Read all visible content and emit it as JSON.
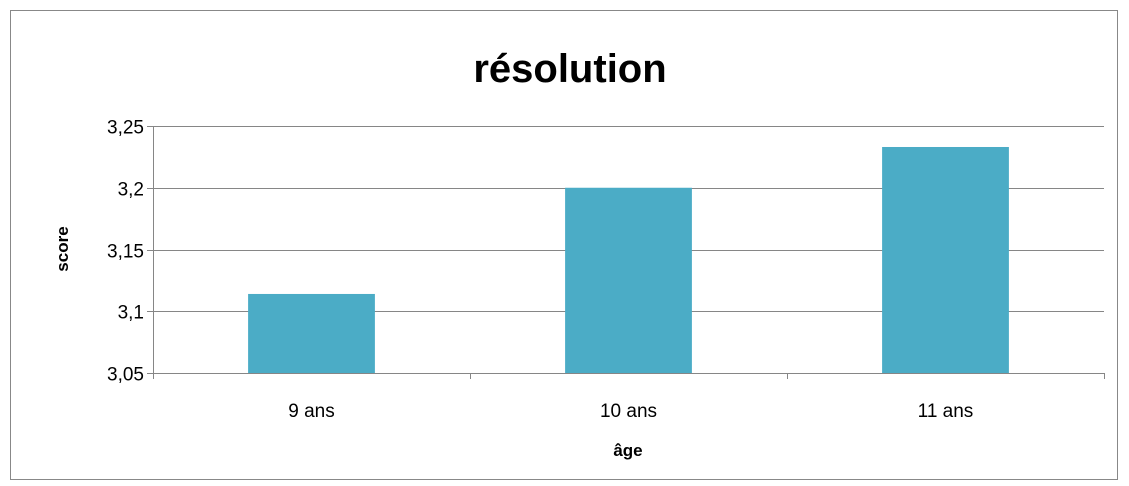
{
  "chart_data": {
    "type": "bar",
    "title": "résolution",
    "xlabel": "âge",
    "ylabel": "score",
    "categories": [
      "9 ans",
      "10 ans",
      "11 ans"
    ],
    "values": [
      3.114,
      3.2,
      3.233
    ],
    "ylim": [
      3.05,
      3.25
    ],
    "yticks": [
      3.05,
      3.1,
      3.15,
      3.2,
      3.25
    ],
    "ytick_labels": [
      "3,05",
      "3,1",
      "3,15",
      "3,2",
      "3,25"
    ],
    "grid": true,
    "legend": "none",
    "bar_color": "#4BACC6",
    "grid_color": "#868686"
  }
}
